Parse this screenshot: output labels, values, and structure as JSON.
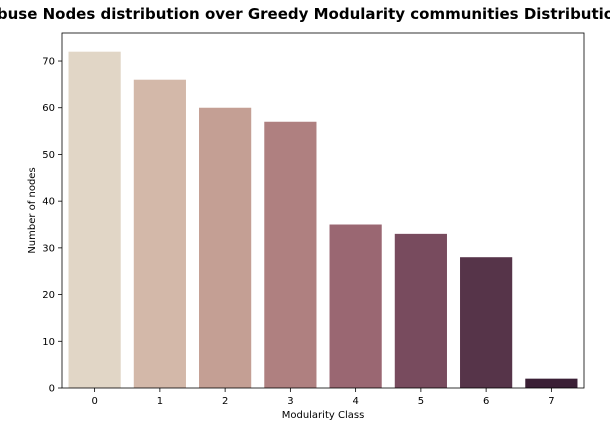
{
  "chart_data": {
    "type": "bar",
    "title": "Abuse Nodes distribution over Greedy Modularity communities Distribution",
    "xlabel": "Modularity Class",
    "ylabel": "Number of nodes",
    "categories": [
      "0",
      "1",
      "2",
      "3",
      "4",
      "5",
      "6",
      "7"
    ],
    "values": [
      72,
      66,
      60,
      57,
      35,
      33,
      28,
      2
    ],
    "colors": [
      "#e1d6c6",
      "#d3b8a9",
      "#c49f94",
      "#af8080",
      "#9a6772",
      "#784b5e",
      "#563449",
      "#3a1f35"
    ],
    "ylim": [
      0,
      76
    ],
    "yticks": [
      0,
      10,
      20,
      30,
      40,
      50,
      60,
      70
    ],
    "grid": false,
    "legend": "none"
  }
}
